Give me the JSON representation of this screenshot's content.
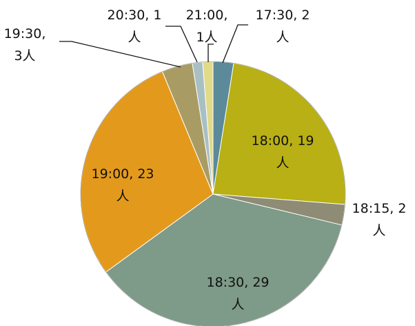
{
  "chart_data": {
    "type": "pie",
    "title": "",
    "categories": [
      "17:30",
      "18:00",
      "18:15",
      "18:30",
      "19:00",
      "19:30",
      "20:30",
      "21:00"
    ],
    "values": [
      2,
      19,
      2,
      29,
      23,
      3,
      1,
      1
    ],
    "unit": "人",
    "colors": [
      "#5b8a9a",
      "#b8b014",
      "#8e8c74",
      "#7e9a88",
      "#e39a1c",
      "#a89c64",
      "#a8c0c4",
      "#e0da8a"
    ],
    "labels": [
      [
        "17:30, 2",
        "人"
      ],
      [
        "18:00, 19",
        "人"
      ],
      [
        "18:15, 2",
        "人"
      ],
      [
        "18:30, 29",
        "人"
      ],
      [
        "19:00, 23",
        "人"
      ],
      [
        "19:30,",
        "3人"
      ],
      [
        "20:30, 1",
        "人"
      ],
      [
        "21:00,",
        "1人"
      ]
    ],
    "legend": "none"
  }
}
